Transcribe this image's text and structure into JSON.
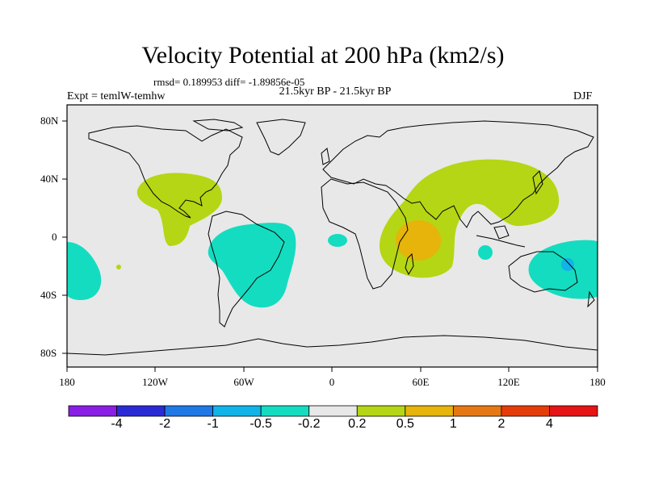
{
  "header": {
    "title": "Velocity Potential at 200 hPa (km2/s)",
    "stats": "rmsd= 0.189953 diff= -1.89856e-05",
    "experiment": "Expt = temlW-temhw",
    "period": "21.5kyr BP - 21.5kyr BP",
    "season": "DJF"
  },
  "axes": {
    "lat_labels": [
      "80N",
      "40N",
      "0",
      "40S",
      "80S"
    ],
    "lon_labels": [
      "180",
      "120W",
      "60W",
      "0",
      "60E",
      "120E",
      "180"
    ]
  },
  "colorbar": {
    "colors": [
      "#8a1ee6",
      "#2a2ad6",
      "#1e78e6",
      "#10b4e8",
      "#14dcc0",
      "#e8e8e8",
      "#b4d614",
      "#e6b40a",
      "#e67814",
      "#e63c0a",
      "#e61414"
    ],
    "labels": [
      "-4",
      "-2",
      "-1",
      "-0.5",
      "-0.2",
      "0.2",
      "0.5",
      "1",
      "2",
      "4"
    ]
  },
  "map_colors": {
    "background": "#e8e8e8",
    "positive_weak": "#b4d614",
    "positive_mid": "#e6b40a",
    "negative_weak": "#14dcc0",
    "negative_mid": "#10b4e8"
  }
}
